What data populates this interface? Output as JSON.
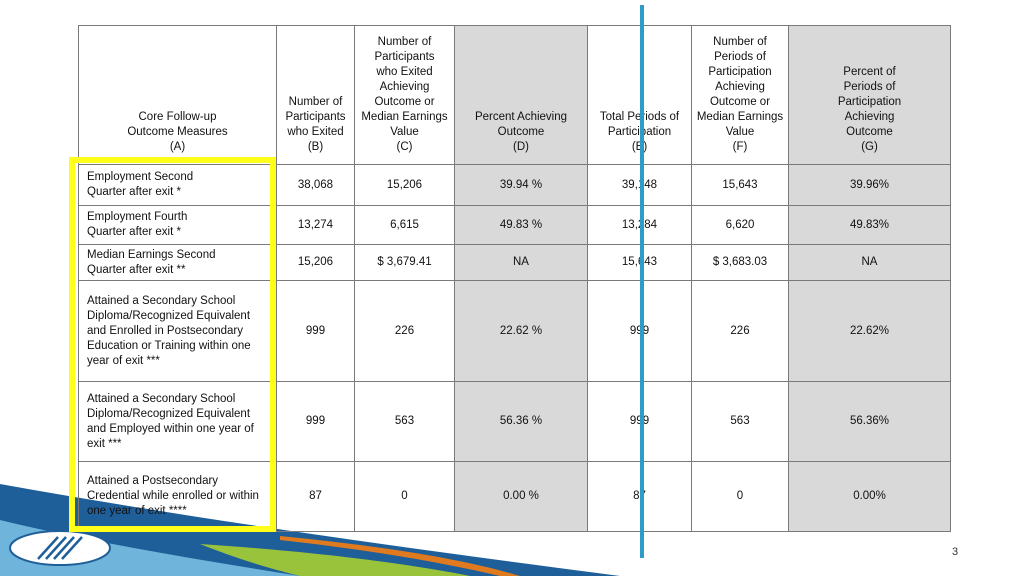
{
  "slide": {
    "page_number": "3"
  },
  "colors": {
    "highlight": "#ffff1a",
    "divider": "#2e9bc9",
    "shaded_column": "#d9d9d9",
    "swoosh_dark_blue": "#1f5f99",
    "swoosh_light_blue": "#7ec3e6",
    "swoosh_orange": "#e07a1f",
    "swoosh_green": "#9ac33c"
  },
  "table": {
    "headers": {
      "a": [
        "Core Follow-up",
        "Outcome Measures",
        "(A)"
      ],
      "b": [
        "Number of",
        "Participants",
        "who Exited",
        "(B)"
      ],
      "c": [
        "Number of",
        "Participants",
        "who Exited",
        "Achieving",
        "Outcome or",
        "Median Earnings",
        "Value",
        "(C)"
      ],
      "d": [
        "Percent Achieving",
        "Outcome",
        "(D)"
      ],
      "e": [
        "Total Periods of",
        "Participation",
        "(E)"
      ],
      "f": [
        "Number of",
        "Periods of",
        "Participation",
        "Achieving",
        "Outcome or",
        "Median Earnings",
        "Value",
        "(F)"
      ],
      "g": [
        "Percent of",
        "Periods of",
        "Participation",
        "Achieving",
        "Outcome",
        "(G)"
      ]
    },
    "rows": [
      {
        "measure": [
          "Employment Second",
          "Quarter after exit *"
        ],
        "b": "38,068",
        "c": "15,206",
        "d": "39.94 %",
        "e": "39,148",
        "f": "15,643",
        "g": "39.96%"
      },
      {
        "measure": [
          "Employment Fourth",
          "Quarter after exit *"
        ],
        "b": "13,274",
        "c": "6,615",
        "d": "49.83 %",
        "e": "13,284",
        "f": "6,620",
        "g": "49.83%"
      },
      {
        "measure": [
          "Median Earnings Second",
          "Quarter after exit **"
        ],
        "b": "15,206",
        "c": "$  3,679.41",
        "d": "NA",
        "e": "15,643",
        "f": "$  3,683.03",
        "g": "NA"
      },
      {
        "measure": [
          "Attained a Secondary School",
          "Diploma/Recognized Equivalent",
          "and Enrolled in Postsecondary",
          "Education or Training within one",
          "year of exit ***"
        ],
        "b": "999",
        "c": "226",
        "d": "22.62 %",
        "e": "999",
        "f": "226",
        "g": "22.62%"
      },
      {
        "measure": [
          "Attained a Secondary School",
          "Diploma/Recognized Equivalent",
          "and Employed within one year of",
          "exit ***"
        ],
        "b": "999",
        "c": "563",
        "d": "56.36 %",
        "e": "999",
        "f": "563",
        "g": "56.36%"
      },
      {
        "measure": [
          "Attained a Postsecondary",
          "Credential while enrolled or within",
          "one year of exit ****"
        ],
        "b": "87",
        "c": "0",
        "d": "0.00 %",
        "e": "87",
        "f": "0",
        "g": "0.00%"
      }
    ]
  }
}
